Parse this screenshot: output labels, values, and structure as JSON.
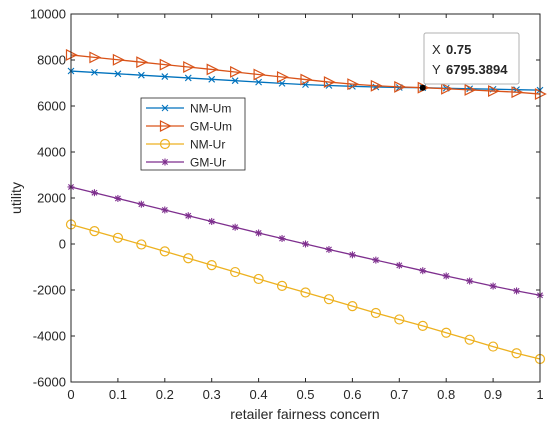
{
  "chart_data": {
    "type": "line",
    "title": "",
    "xlabel": "retailer fairness concern",
    "ylabel": "utility",
    "xlim": [
      0,
      1
    ],
    "ylim": [
      -6000,
      10000
    ],
    "xticks": [
      "0",
      "0.1",
      "0.2",
      "0.3",
      "0.4",
      "0.5",
      "0.6",
      "0.7",
      "0.8",
      "0.9",
      "1"
    ],
    "yticks": [
      "-6000",
      "-4000",
      "-2000",
      "0",
      "2000",
      "4000",
      "6000",
      "8000",
      "10000"
    ],
    "grid": false,
    "legend_position": "upper-left-inside",
    "x": [
      0,
      0.05,
      0.1,
      0.15,
      0.2,
      0.25,
      0.3,
      0.35,
      0.4,
      0.45,
      0.5,
      0.55,
      0.6,
      0.65,
      0.7,
      0.75,
      0.8,
      0.85,
      0.9,
      0.95,
      1
    ],
    "series": [
      {
        "name": "NM-Um",
        "color": "#0072BD",
        "marker": "x",
        "values": [
          7520,
          7460,
          7400,
          7340,
          7280,
          7220,
          7160,
          7100,
          7040,
          6985,
          6930,
          6890,
          6855,
          6825,
          6805,
          6795,
          6770,
          6750,
          6730,
          6710,
          6690
        ]
      },
      {
        "name": "GM-Um",
        "color": "#D95319",
        "marker": "triangle-right",
        "values": [
          8220,
          8115,
          8010,
          7905,
          7800,
          7695,
          7590,
          7480,
          7370,
          7260,
          7150,
          7040,
          6950,
          6880,
          6830,
          6795,
          6750,
          6700,
          6650,
          6600,
          6520
        ]
      },
      {
        "name": "NM-Ur",
        "color": "#EDB120",
        "marker": "circle",
        "values": [
          850,
          560,
          270,
          -20,
          -320,
          -620,
          -920,
          -1220,
          -1520,
          -1820,
          -2110,
          -2400,
          -2700,
          -3000,
          -3280,
          -3560,
          -3860,
          -4160,
          -4460,
          -4750,
          -5000
        ]
      },
      {
        "name": "GM-Ur",
        "color": "#7E2F8E",
        "marker": "asterisk",
        "values": [
          2480,
          2230,
          1980,
          1730,
          1480,
          1230,
          980,
          730,
          480,
          240,
          0,
          -240,
          -470,
          -700,
          -930,
          -1160,
          -1390,
          -1610,
          -1830,
          -2040,
          -2230
        ]
      }
    ],
    "datatip": {
      "x": 0.75,
      "y": 6795.3894,
      "x_prefix": "X",
      "y_prefix": "Y",
      "x_text": "0.75",
      "y_text": "6795.3894",
      "value_color": "#0096FF"
    }
  }
}
